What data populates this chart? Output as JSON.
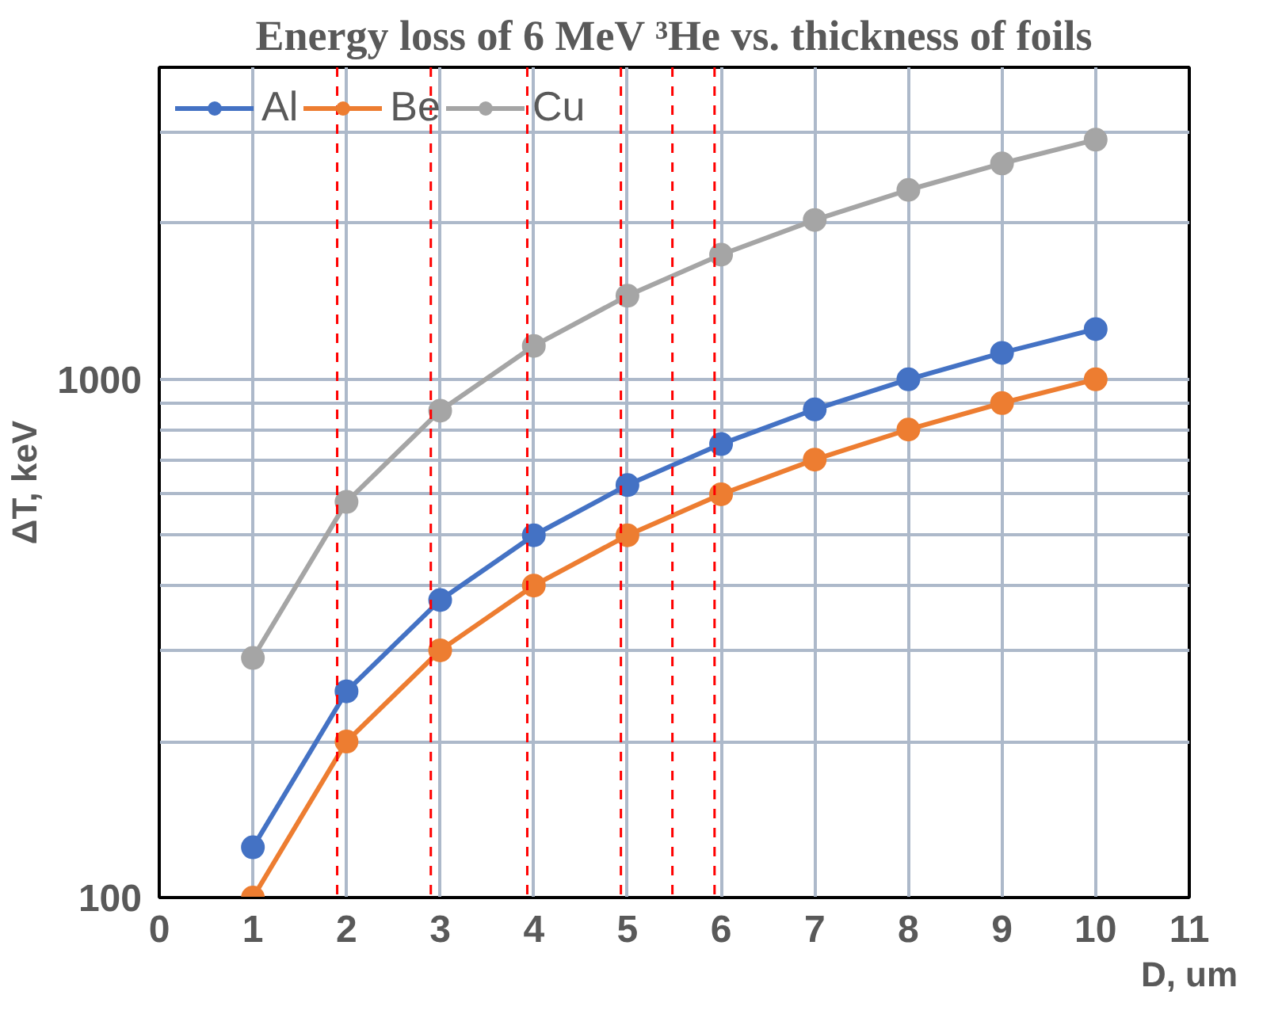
{
  "chart_data": {
    "type": "line",
    "title": "Energy loss of 6 MeV ³He vs. thickness of foils",
    "xlabel": "D, um",
    "ylabel": "ΔT, keV",
    "x": [
      1,
      2,
      3,
      4,
      5,
      6,
      7,
      8,
      9,
      10
    ],
    "series": [
      {
        "name": "Al",
        "color": "#4472c4",
        "values": [
          125,
          250,
          375,
          500,
          625,
          750,
          875,
          1000,
          1125,
          1250
        ]
      },
      {
        "name": "Be",
        "color": "#ed7d31",
        "values": [
          100,
          200,
          300,
          400,
          500,
          600,
          700,
          800,
          900,
          1000
        ]
      },
      {
        "name": "Cu",
        "color": "#a5a5a5",
        "values": [
          290,
          580,
          870,
          1160,
          1450,
          1740,
          2030,
          2320,
          2610,
          2900
        ]
      }
    ],
    "xlim": [
      0,
      11
    ],
    "xticks": [
      0,
      1,
      2,
      3,
      4,
      5,
      6,
      7,
      8,
      9,
      10,
      11
    ],
    "ylim": [
      100,
      4000
    ],
    "yticks": [
      100,
      {
        "value": 200,
        "label": null
      },
      {
        "value": 300,
        "label": null
      },
      {
        "value": 400,
        "label": null
      },
      {
        "value": 500,
        "label": null
      },
      {
        "value": 600,
        "label": null
      },
      {
        "value": 700,
        "label": null
      },
      {
        "value": 800,
        "label": null
      },
      {
        "value": 900,
        "label": null
      },
      1000,
      {
        "value": 2000,
        "label": null
      },
      {
        "value": 3000,
        "label": null
      },
      {
        "value": 4000,
        "label": null
      }
    ],
    "log": "y",
    "grid": true,
    "legend": "top left",
    "marker": "circle",
    "line_style": "solid",
    "ref_lines": [
      {
        "axis": "x",
        "value": 1.9,
        "color": "#ff0000",
        "line_style": "dashed"
      },
      {
        "axis": "x",
        "value": 2.9,
        "color": "#ff0000",
        "line_style": "dashed"
      },
      {
        "axis": "x",
        "value": 3.93,
        "color": "#ff0000",
        "line_style": "dashed"
      },
      {
        "axis": "x",
        "value": 4.93,
        "color": "#ff0000",
        "line_style": "dashed"
      },
      {
        "axis": "x",
        "value": 5.48,
        "color": "#ff0000",
        "line_style": "dashed"
      },
      {
        "axis": "x",
        "value": 5.93,
        "color": "#ff0000",
        "line_style": "dashed"
      }
    ]
  }
}
